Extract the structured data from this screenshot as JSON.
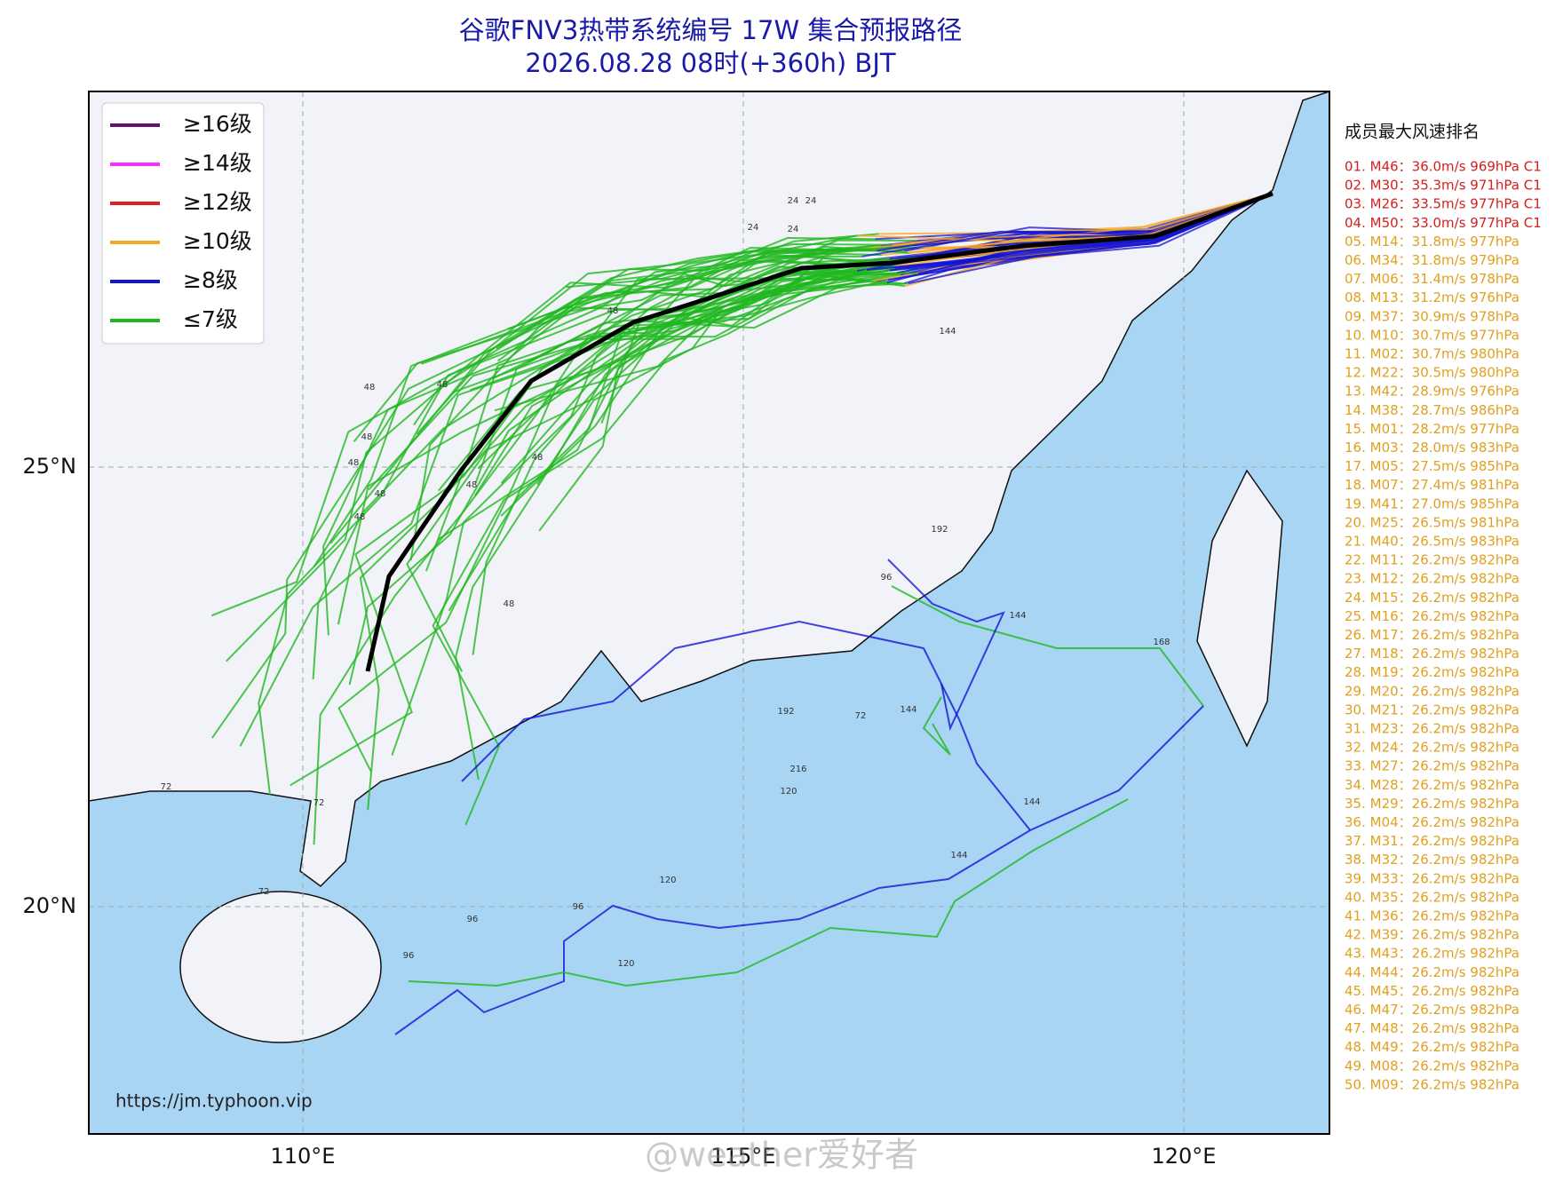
{
  "header": {
    "title": "谷歌FNV3热带系统编号 17W 集合预报路径",
    "subtitle": "2026.08.28 08时(+360h) BJT"
  },
  "legend": [
    {
      "name": "≥16级",
      "color": "#6a106a"
    },
    {
      "name": "≥14级",
      "color": "#ff2bff"
    },
    {
      "name": "≥12级",
      "color": "#e0201e"
    },
    {
      "name": "≥10级",
      "color": "#f5a623"
    },
    {
      "name": "≥8级",
      "color": "#1414d6"
    },
    {
      "name": "≤7级",
      "color": "#1fb81f"
    }
  ],
  "axes": {
    "lat": [
      "25°N",
      "20°N"
    ],
    "lon": [
      "110°E",
      "115°E",
      "120°E"
    ]
  },
  "hour_labels": [
    "24",
    "24",
    "24",
    "24",
    "48",
    "48",
    "48",
    "48",
    "48",
    "48",
    "48",
    "48",
    "48",
    "48",
    "72",
    "72",
    "72",
    "72",
    "96",
    "96",
    "96",
    "96",
    "120",
    "120",
    "120",
    "144",
    "144",
    "144",
    "144",
    "144",
    "168",
    "192",
    "192",
    "216"
  ],
  "ranking": {
    "title": "成员最大风速排名",
    "top": [
      "01. M46：36.0m/s 969hPa C1",
      "02. M30：35.3m/s 971hPa C1",
      "03. M26：33.5m/s 977hPa C1",
      "04. M50：33.0m/s 977hPa C1"
    ],
    "rest": [
      "05. M14：31.8m/s 977hPa",
      "06. M34：31.8m/s 979hPa",
      "07. M06：31.4m/s 978hPa",
      "08. M13：31.2m/s 976hPa",
      "09. M37：30.9m/s 978hPa",
      "10. M10：30.7m/s 977hPa",
      "11. M02：30.7m/s 980hPa",
      "12. M22：30.5m/s 980hPa",
      "13. M42：28.9m/s 976hPa",
      "14. M38：28.7m/s 986hPa",
      "15. M01：28.2m/s 977hPa",
      "16. M03：28.0m/s 983hPa",
      "17. M05：27.5m/s 985hPa",
      "18. M07：27.4m/s 981hPa",
      "19. M41：27.0m/s 985hPa",
      "20. M25：26.5m/s 981hPa",
      "21. M40：26.5m/s 983hPa",
      "22. M11：26.2m/s 982hPa",
      "23. M12：26.2m/s 982hPa",
      "24. M15：26.2m/s 982hPa",
      "25. M16：26.2m/s 982hPa",
      "26. M17：26.2m/s 982hPa",
      "27. M18：26.2m/s 982hPa",
      "28. M19：26.2m/s 982hPa",
      "29. M20：26.2m/s 982hPa",
      "30. M21：26.2m/s 982hPa",
      "31. M23：26.2m/s 982hPa",
      "32. M24：26.2m/s 982hPa",
      "33. M27：26.2m/s 982hPa",
      "34. M28：26.2m/s 982hPa",
      "35. M29：26.2m/s 982hPa",
      "36. M04：26.2m/s 982hPa",
      "37. M31：26.2m/s 982hPa",
      "38. M32：26.2m/s 982hPa",
      "39. M33：26.2m/s 982hPa",
      "40. M35：26.2m/s 982hPa",
      "41. M36：26.2m/s 982hPa",
      "42. M39：26.2m/s 982hPa",
      "43. M43：26.2m/s 982hPa",
      "44. M44：26.2m/s 982hPa",
      "45. M45：26.2m/s 982hPa",
      "46. M47：26.2m/s 982hPa",
      "47. M48：26.2m/s 982hPa",
      "48. M49：26.2m/s 982hPa",
      "49. M08：26.2m/s 982hPa",
      "50. M09：26.2m/s 982hPa"
    ]
  },
  "footer": {
    "url": "https://jm.typhoon.vip",
    "watermark": "@weather爱好者"
  }
}
